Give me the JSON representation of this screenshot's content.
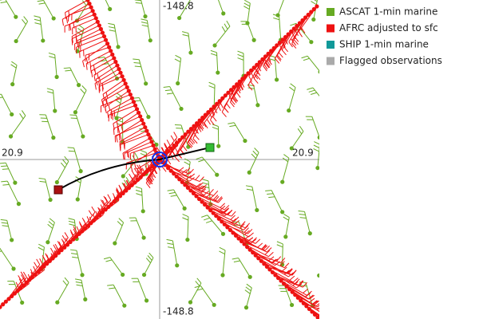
{
  "axes": {
    "lon_top": "-148.8",
    "lon_bottom": "-148.8",
    "lat_left": "20.9",
    "lat_right": "20.9"
  },
  "legend": [
    {
      "label": "ASCAT 1-min marine",
      "color": "#66aa22"
    },
    {
      "label": "AFRC adjusted to sfc",
      "color": "#ee1111"
    },
    {
      "label": "SHIP 1-min marine",
      "color": "#119999"
    },
    {
      "label": "Flagged observations",
      "color": "#aaaaaa"
    }
  ]
}
